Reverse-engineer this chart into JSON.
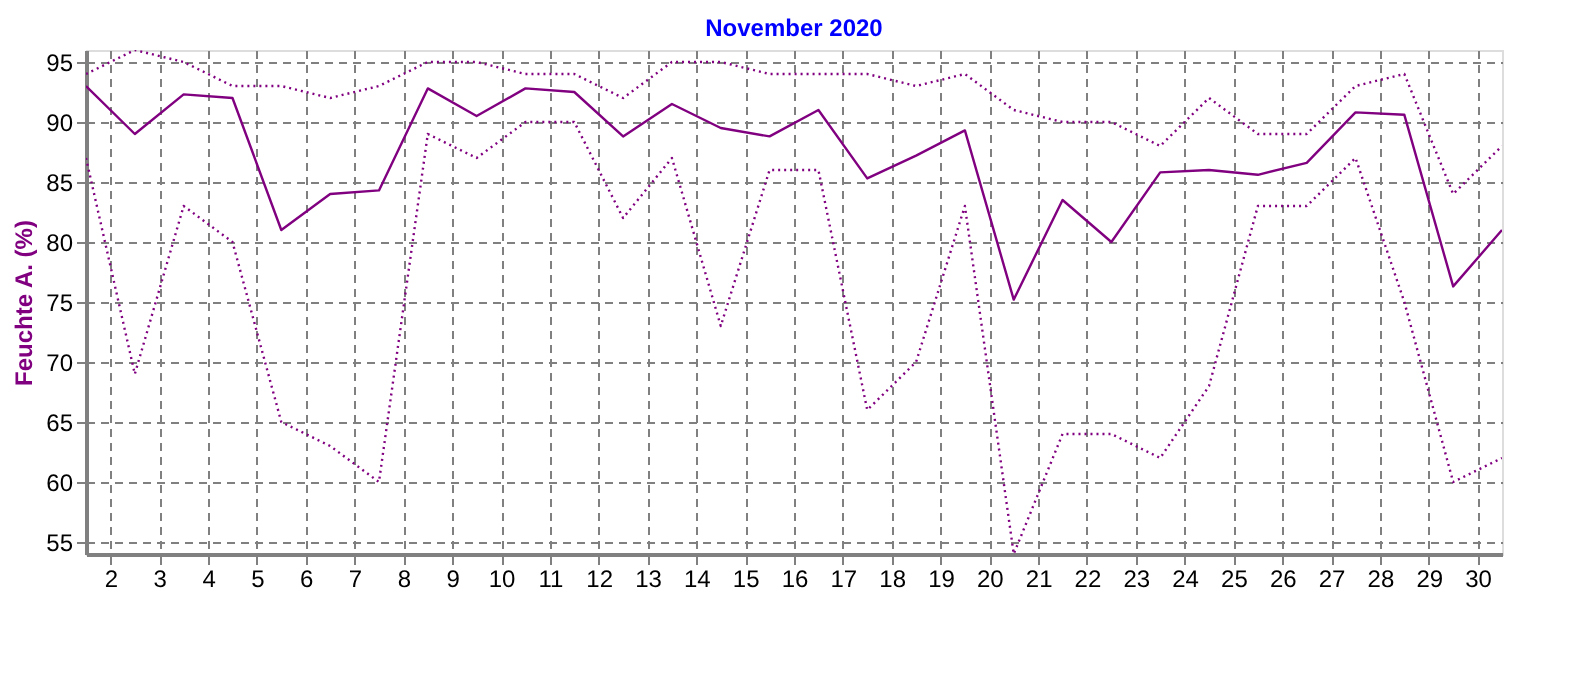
{
  "chart_data": {
    "type": "line",
    "title": "November 2020",
    "ylabel": "Feuchte A. (%)",
    "x": [
      1.5,
      2.5,
      3.5,
      4.5,
      5.5,
      6.5,
      7.5,
      8.5,
      9.5,
      10.5,
      11.5,
      12.5,
      13.5,
      14.5,
      15.5,
      16.5,
      17.5,
      18.5,
      19.5,
      20.5,
      21.5,
      22.5,
      23.5,
      24.5,
      25.5,
      26.5,
      27.5,
      28.5,
      29.5,
      30.5
    ],
    "series": [
      {
        "color": "#800080",
        "line_style": "dotted",
        "values": [
          94,
          96,
          95,
          93,
          93,
          92,
          93,
          95,
          95,
          94,
          94,
          92,
          95,
          95,
          94,
          94,
          94,
          93,
          94,
          91,
          90,
          90,
          88,
          92,
          89,
          89,
          93,
          94,
          84,
          88
        ]
      },
      {
        "color": "#800080",
        "line_style": "solid",
        "values": [
          93,
          89,
          92.3,
          92,
          81,
          84,
          84.3,
          92.8,
          90.5,
          92.8,
          92.5,
          88.8,
          91.5,
          89.5,
          88.8,
          91,
          85.3,
          87.2,
          89.3,
          75.2,
          83.5,
          80,
          85.8,
          86,
          85.6,
          86.6,
          90.8,
          90.6,
          76.3,
          81
        ]
      },
      {
        "color": "#800080",
        "line_style": "dotted",
        "values": [
          87,
          69,
          83,
          80,
          65,
          63,
          60,
          89,
          87,
          90,
          90,
          82,
          87,
          73,
          86,
          86,
          66,
          70,
          83,
          54,
          64,
          64,
          62,
          68,
          83,
          83,
          87,
          75,
          60,
          62
        ]
      }
    ],
    "xlim": [
      1.5,
      30.5
    ],
    "xticks": [
      2,
      3,
      4,
      5,
      6,
      7,
      8,
      9,
      10,
      11,
      12,
      13,
      14,
      15,
      16,
      17,
      18,
      19,
      20,
      21,
      22,
      23,
      24,
      25,
      26,
      27,
      28,
      29,
      30
    ],
    "ylim": [
      54,
      96
    ],
    "yticks": [
      55,
      60,
      65,
      70,
      75,
      80,
      85,
      90,
      95
    ],
    "grid": true
  }
}
